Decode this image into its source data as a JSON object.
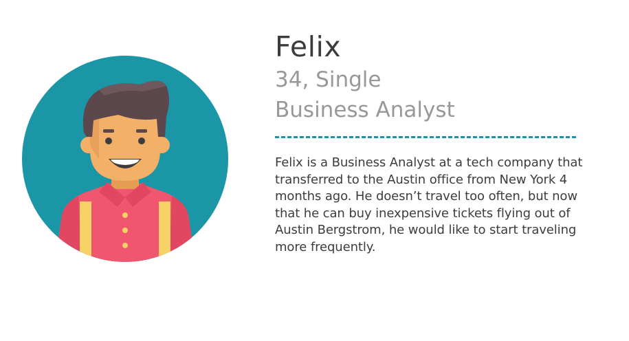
{
  "persona": {
    "name": "Felix",
    "age_status": "34, Single",
    "occupation": "Business Analyst",
    "bio": "Felix is a Business Analyst at a tech company that transferred to the Austin office from New York 4 months ago. He doesn’t travel too often, but now that he can buy inexpensive tickets flying out of Austin Bergstrom, he would like to start traveling more frequently."
  },
  "colors": {
    "avatar_background": "#1a96a7",
    "divider": "#1795a7",
    "name_text": "#3e3b3e",
    "meta_text": "#999799",
    "shirt": "#f0566d",
    "suspenders": "#f8d267",
    "skin": "#f2b068",
    "hair": "#5b474c"
  },
  "icons": {
    "avatar": "man-avatar-icon"
  }
}
